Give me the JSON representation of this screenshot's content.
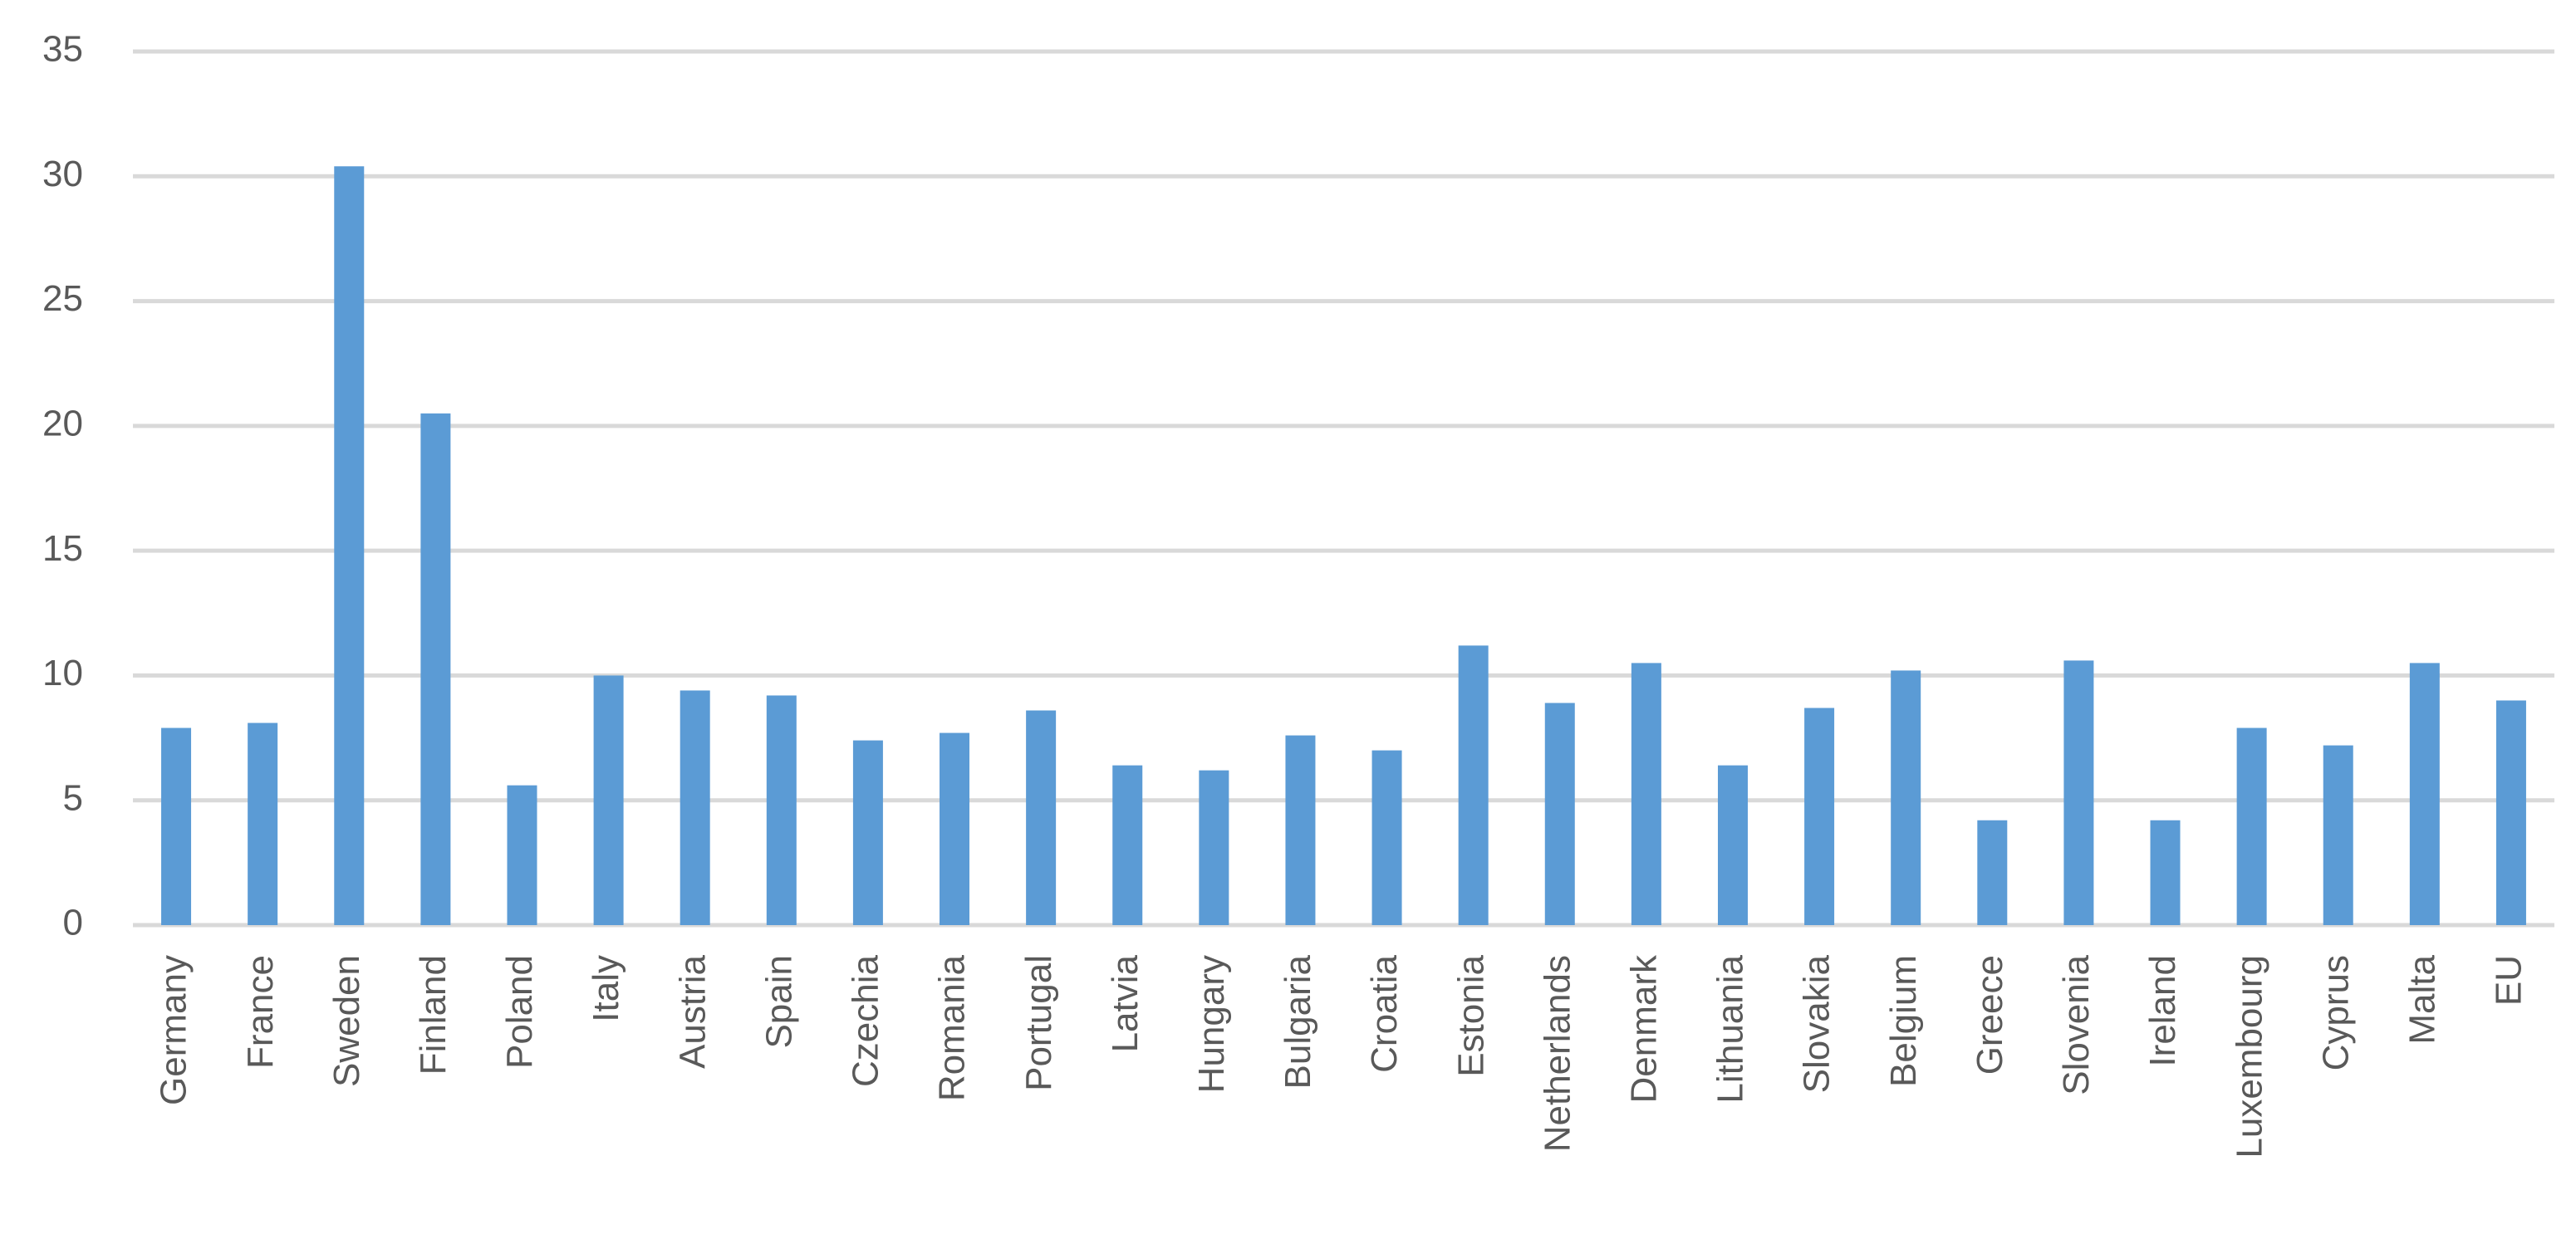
{
  "chart_data": {
    "type": "bar",
    "categories": [
      "Germany",
      "France",
      "Sweden",
      "Finland",
      "Poland",
      "Italy",
      "Austria",
      "Spain",
      "Czechia",
      "Romania",
      "Portugal",
      "Latvia",
      "Hungary",
      "Bulgaria",
      "Croatia",
      "Estonia",
      "Netherlands",
      "Denmark",
      "Lithuania",
      "Slovakia",
      "Belgium",
      "Greece",
      "Slovenia",
      "Ireland",
      "Luxembourg",
      "Cyprus",
      "Malta",
      "EU"
    ],
    "values": [
      7.9,
      8.1,
      30.4,
      20.5,
      5.6,
      10.0,
      9.4,
      9.2,
      7.4,
      7.7,
      8.6,
      6.4,
      6.2,
      7.6,
      7.0,
      11.2,
      8.9,
      10.5,
      6.4,
      8.7,
      10.2,
      4.2,
      10.6,
      4.2,
      7.9,
      7.2,
      10.5,
      9.0
    ],
    "color": "#5b9bd5",
    "ylim": [
      0,
      35
    ],
    "yticks": [
      0,
      5,
      10,
      15,
      20,
      25,
      30,
      35
    ],
    "grid": true
  }
}
